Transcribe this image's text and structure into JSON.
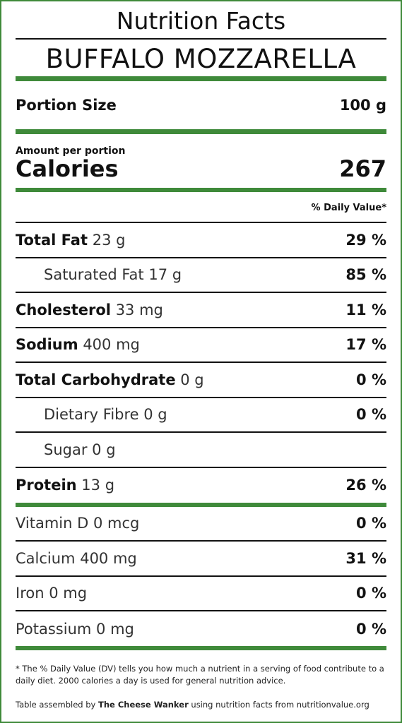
{
  "header": {
    "title": "Nutrition Facts",
    "product": "BUFFALO MOZZARELLA"
  },
  "portion": {
    "label": "Portion Size",
    "value": "100 g"
  },
  "calories": {
    "caption": "Amount per portion",
    "label": "Calories",
    "value": "267"
  },
  "daily_value_header": "% Daily Value*",
  "nutrients": [
    {
      "name": "Total Fat",
      "amount": "23 g",
      "dv": "29 %"
    },
    {
      "name": "Saturated Fat",
      "amount": "17 g",
      "dv": "85 %"
    },
    {
      "name": "Cholesterol",
      "amount": "33 mg",
      "dv": "11 %"
    },
    {
      "name": "Sodium",
      "amount": "400 mg",
      "dv": "17 %"
    },
    {
      "name": "Total Carbohydrate",
      "amount": "0 g",
      "dv": "0 %"
    },
    {
      "name": "Dietary Fibre",
      "amount": "0 g",
      "dv": "0 %"
    },
    {
      "name": "Sugar",
      "amount": "0 g"
    },
    {
      "name": "Protein",
      "amount": "13 g",
      "dv": "26 %"
    }
  ],
  "minerals": [
    {
      "name": "Vitamin D",
      "amount": "0 mcg",
      "dv": "0 %"
    },
    {
      "name": "Calcium",
      "amount": "400 mg",
      "dv": "31 %"
    },
    {
      "name": "Iron",
      "amount": "0 mg",
      "dv": "0 %"
    },
    {
      "name": "Potassium",
      "amount": "0 mg",
      "dv": "0 %"
    }
  ],
  "footnote": "* The % Daily Value (DV) tells you how much a nutrient in a serving of food contribute to a daily diet. 2000 calories a day is used for general nutrition advice.",
  "credit": {
    "prefix": "Table assembled by",
    "author": "The Cheese Wanker",
    "suffix": "using nutrition facts from nutritionvalue.org"
  }
}
